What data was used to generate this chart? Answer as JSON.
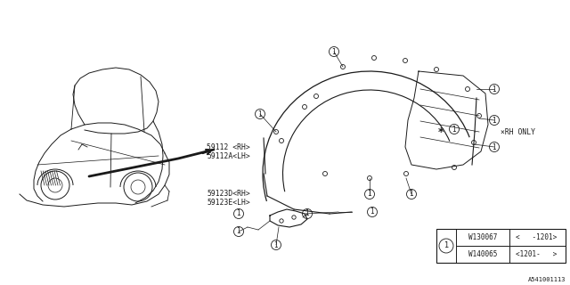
{
  "bg_color": "#ffffff",
  "line_color": "#1a1a1a",
  "fig_width": 6.4,
  "fig_height": 3.2,
  "dpi": 100,
  "diagram_id": "A541001113",
  "labels": {
    "p1_rh": "59112 <RH>",
    "p1_lh": "59112A<LH>",
    "p2_rh": "59123D<RH>",
    "p2_lh": "59123E<LH>",
    "rh_only": "×RH ONLY"
  },
  "legend_rows": [
    {
      "part": "W130067",
      "range": "<   -1201>"
    },
    {
      "part": "W140065",
      "range": "<1201-   >"
    }
  ]
}
